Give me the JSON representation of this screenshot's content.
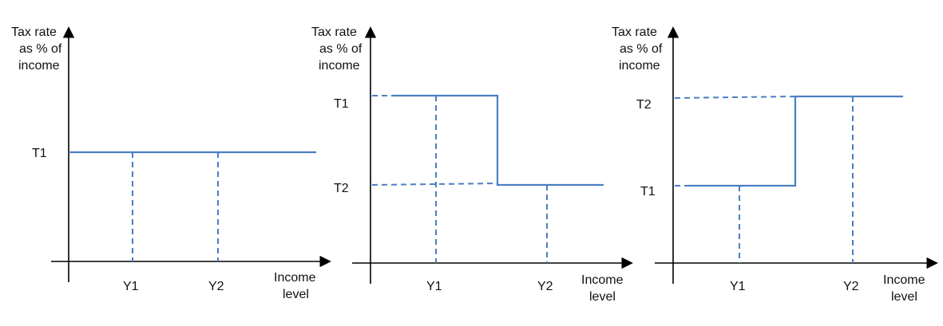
{
  "panels": [
    {
      "id": "flat",
      "y_axis_label": [
        "Tax rate",
        "as % of",
        "income"
      ],
      "x_axis_label": [
        "Income",
        "level"
      ],
      "rate_labels": [
        "T1"
      ],
      "income_labels": [
        "Y1",
        "Y2"
      ]
    },
    {
      "id": "regressive",
      "y_axis_label": [
        "Tax rate",
        "as % of",
        "income"
      ],
      "x_axis_label": [
        "Income",
        "level"
      ],
      "rate_labels": [
        "T1",
        "T2"
      ],
      "income_labels": [
        "Y1",
        "Y2"
      ]
    },
    {
      "id": "progressive",
      "y_axis_label": [
        "Tax rate",
        "as % of",
        "income"
      ],
      "x_axis_label": [
        "Income",
        "level"
      ],
      "rate_labels": [
        "T2",
        "T1"
      ],
      "income_labels": [
        "Y1",
        "Y2"
      ]
    }
  ],
  "colors": {
    "line": "#4a7fc1",
    "axis": "#000000"
  }
}
